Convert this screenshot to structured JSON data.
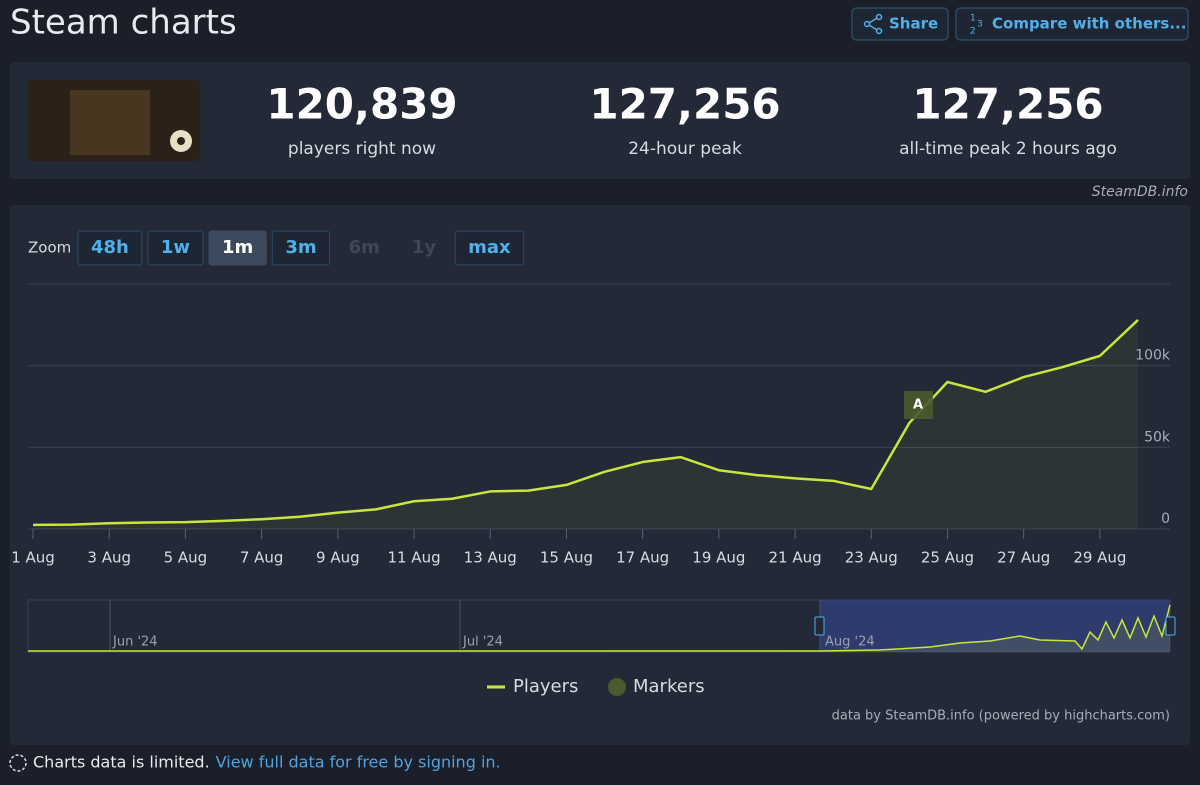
{
  "header": {
    "title": "Steam charts",
    "buttons": [
      "Share",
      "Compare with others..."
    ]
  },
  "stats": [
    {
      "value": "120,839",
      "label": "players right now"
    },
    {
      "value": "127,256",
      "label": "24-hour peak"
    },
    {
      "value": "127,256",
      "label": "all-time peak 2 hours ago"
    }
  ],
  "source": "SteamDB.info",
  "zoom": {
    "label": "Zoom",
    "options": [
      {
        "label": "48h",
        "state": "enabled"
      },
      {
        "label": "1w",
        "state": "enabled"
      },
      {
        "label": "1m",
        "state": "active"
      },
      {
        "label": "3m",
        "state": "enabled"
      },
      {
        "label": "6m",
        "state": "disabled"
      },
      {
        "label": "1y",
        "state": "disabled"
      },
      {
        "label": "max",
        "state": "enabled"
      }
    ]
  },
  "chart_data": {
    "type": "line",
    "categories": [
      "1 Aug",
      null,
      "3 Aug",
      null,
      "5 Aug",
      null,
      "7 Aug",
      null,
      "9 Aug",
      null,
      "11 Aug",
      null,
      "13 Aug",
      null,
      "15 Aug",
      null,
      "17 Aug",
      null,
      "19 Aug",
      null,
      "21 Aug",
      null,
      "23 Aug",
      null,
      "25 Aug",
      null,
      "27 Aug",
      null,
      "29 Aug",
      null
    ],
    "series": [
      {
        "name": "Players",
        "color": "#c8e63c",
        "values": [
          2500,
          2700,
          3500,
          4000,
          4200,
          5000,
          6000,
          7500,
          10000,
          12000,
          17000,
          18500,
          23000,
          23500,
          27000,
          35000,
          41000,
          44000,
          36000,
          33000,
          31000,
          29500,
          24500,
          65000,
          90000,
          84000,
          93000,
          99000,
          106000,
          128000
        ]
      }
    ],
    "ylim": [
      0,
      150000
    ],
    "yticks": [
      0,
      {
        "value": 50000,
        "label": "50k"
      },
      {
        "value": 100000,
        "label": "100k"
      }
    ],
    "grid": true,
    "markers": {
      "name": "Markers",
      "color": "#4b5a2e",
      "labels": [
        "A"
      ]
    }
  },
  "navigator": {
    "labels": [
      "Jun '24",
      "Jul '24",
      "Aug '24"
    ]
  },
  "credit": "data by SteamDB.info (powered by highcharts.com)",
  "footer": {
    "notice": "Charts data is limited.",
    "link": "View full data for free by signing in."
  }
}
